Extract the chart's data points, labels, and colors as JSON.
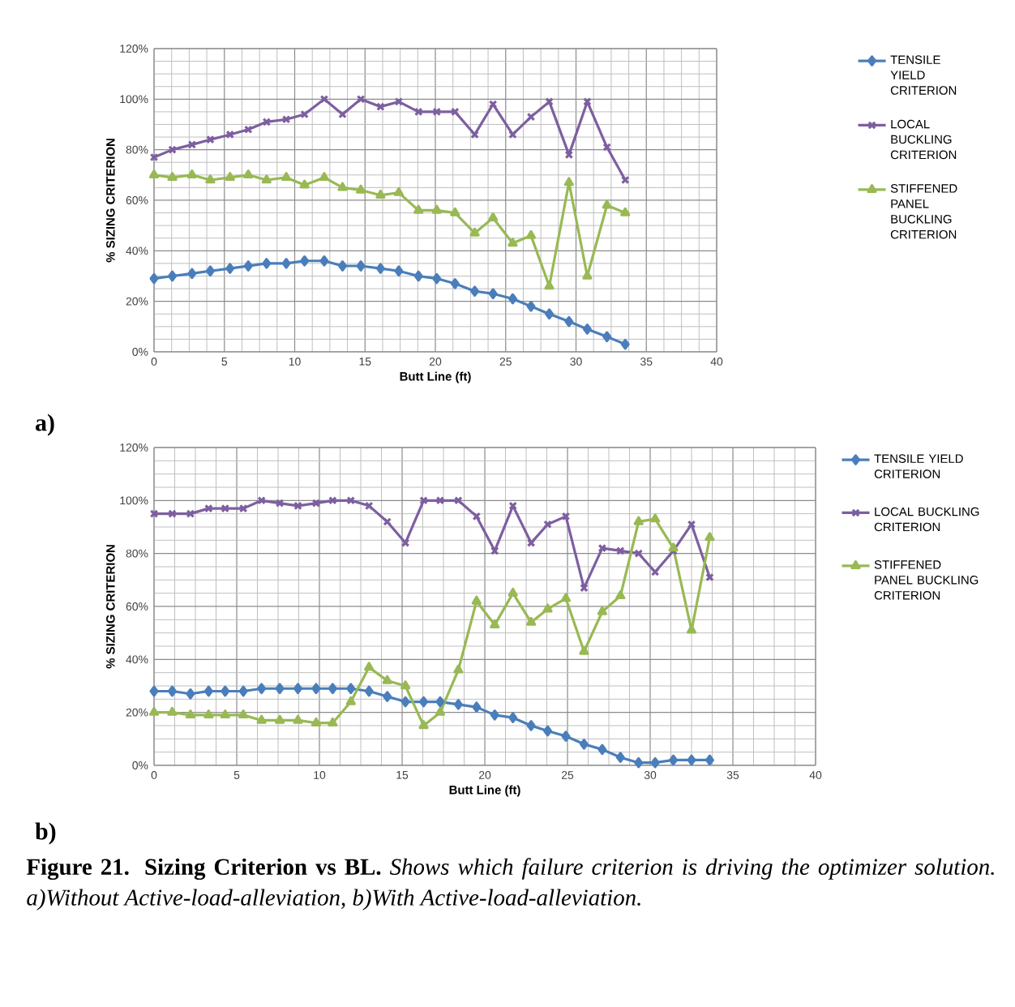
{
  "chart_data": [
    {
      "type": "line",
      "xlabel": "Butt Line (ft)",
      "ylabel": "% SIZING CRITERION",
      "xlim": [
        0,
        40
      ],
      "xticks": [
        0,
        5,
        10,
        15,
        20,
        25,
        30,
        35,
        40
      ],
      "ylim": [
        0,
        120
      ],
      "yticks": [
        {
          "value": 0,
          "label": "0%"
        },
        {
          "value": 20,
          "label": "20%"
        },
        {
          "value": 40,
          "label": "40%"
        },
        {
          "value": 60,
          "label": "60%"
        },
        {
          "value": 80,
          "label": "80%"
        },
        {
          "value": 100,
          "label": "100%"
        },
        {
          "value": 120,
          "label": "120%"
        }
      ],
      "grid": true,
      "legend": "right",
      "annotations": [
        "a)"
      ],
      "series": [
        {
          "name": "TENSILE YIELD CRITERION",
          "color": "#4a7ebb",
          "marker": "diamond",
          "x": [
            0,
            1.3,
            2.7,
            4.0,
            5.4,
            6.7,
            8.0,
            9.4,
            10.7,
            12.1,
            13.4,
            14.7,
            16.1,
            17.4,
            18.8,
            20.1,
            21.4,
            22.8,
            24.1,
            25.5,
            26.8,
            28.1,
            29.5,
            30.8,
            32.2,
            33.5
          ],
          "values": [
            29,
            30,
            31,
            32,
            33,
            34,
            35,
            35,
            36,
            36,
            34,
            34,
            33,
            32,
            30,
            29,
            27,
            24,
            23,
            21,
            18,
            15,
            12,
            9,
            6,
            3
          ]
        },
        {
          "name": "LOCAL BUCKLING CRITERION",
          "color": "#7d5fa0",
          "marker": "cross",
          "x": [
            0,
            1.3,
            2.7,
            4.0,
            5.4,
            6.7,
            8.0,
            9.4,
            10.7,
            12.1,
            13.4,
            14.7,
            16.1,
            17.4,
            18.8,
            20.1,
            21.4,
            22.8,
            24.1,
            25.5,
            26.8,
            28.1,
            29.5,
            30.8,
            32.2,
            33.5
          ],
          "values": [
            77,
            80,
            82,
            84,
            86,
            88,
            91,
            92,
            94,
            100,
            94,
            100,
            97,
            99,
            95,
            95,
            95,
            86,
            98,
            86,
            93,
            99,
            78,
            99,
            81,
            68
          ]
        },
        {
          "name": "STIFFENED PANEL BUCKLING CRITERION",
          "color": "#98b954",
          "marker": "triangle",
          "x": [
            0,
            1.3,
            2.7,
            4.0,
            5.4,
            6.7,
            8.0,
            9.4,
            10.7,
            12.1,
            13.4,
            14.7,
            16.1,
            17.4,
            18.8,
            20.1,
            21.4,
            22.8,
            24.1,
            25.5,
            26.8,
            28.1,
            29.5,
            30.8,
            32.2,
            33.5
          ],
          "values": [
            70,
            69,
            70,
            68,
            69,
            70,
            68,
            69,
            66,
            69,
            65,
            64,
            62,
            63,
            56,
            56,
            55,
            47,
            53,
            43,
            46,
            26,
            67,
            30,
            58,
            55
          ]
        }
      ]
    },
    {
      "type": "line",
      "xlabel": "Butt Line (ft)",
      "ylabel": "% SIZING CRITERION",
      "xlim": [
        0,
        40
      ],
      "xticks": [
        0,
        5,
        10,
        15,
        20,
        25,
        30,
        35,
        40
      ],
      "ylim": [
        0,
        120
      ],
      "yticks": [
        {
          "value": 0,
          "label": "0%"
        },
        {
          "value": 20,
          "label": "20%"
        },
        {
          "value": 40,
          "label": "40%"
        },
        {
          "value": 60,
          "label": "60%"
        },
        {
          "value": 80,
          "label": "80%"
        },
        {
          "value": 100,
          "label": "100%"
        },
        {
          "value": 120,
          "label": "120%"
        }
      ],
      "grid": true,
      "legend": "right",
      "annotations": [
        "b)",
        "**Figure 21. Sizing Criterion vs BL.** *Shows which failure criterion is driving the optimizer solution. a)Without Active-load-alleviation, b)With Active-load-alleviation.*"
      ],
      "series": [
        {
          "name": "TENSILE YIELD CRITERION",
          "color": "#4a7ebb",
          "marker": "diamond",
          "x": [
            0,
            1.1,
            2.2,
            3.3,
            4.3,
            5.4,
            6.5,
            7.6,
            8.7,
            9.8,
            10.8,
            11.9,
            13.0,
            14.1,
            15.2,
            16.3,
            17.3,
            18.4,
            19.5,
            20.6,
            21.7,
            22.8,
            23.8,
            24.9,
            26.0,
            27.1,
            28.2,
            29.3,
            30.3,
            31.4,
            32.5,
            33.6
          ],
          "values": [
            28,
            28,
            27,
            28,
            28,
            28,
            29,
            29,
            29,
            29,
            29,
            29,
            28,
            26,
            24,
            24,
            24,
            23,
            22,
            19,
            18,
            15,
            13,
            11,
            8,
            6,
            3,
            1,
            1,
            2,
            2,
            2
          ]
        },
        {
          "name": "LOCAL BUCKLING CRITERION",
          "color": "#7d5fa0",
          "marker": "cross",
          "x": [
            0,
            1.1,
            2.2,
            3.3,
            4.3,
            5.4,
            6.5,
            7.6,
            8.7,
            9.8,
            10.8,
            11.9,
            13.0,
            14.1,
            15.2,
            16.3,
            17.3,
            18.4,
            19.5,
            20.6,
            21.7,
            22.8,
            23.8,
            24.9,
            26.0,
            27.1,
            28.2,
            29.3,
            30.3,
            31.4,
            32.5,
            33.6
          ],
          "values": [
            95,
            95,
            95,
            97,
            97,
            97,
            100,
            99,
            98,
            99,
            100,
            100,
            98,
            92,
            84,
            100,
            100,
            100,
            94,
            81,
            98,
            84,
            91,
            94,
            67,
            82,
            81,
            80,
            73,
            81,
            91,
            71
          ]
        },
        {
          "name": "STIFFENED PANEL BUCKLING CRITERION",
          "color": "#98b954",
          "marker": "triangle",
          "x": [
            0,
            1.1,
            2.2,
            3.3,
            4.3,
            5.4,
            6.5,
            7.6,
            8.7,
            9.8,
            10.8,
            11.9,
            13.0,
            14.1,
            15.2,
            16.3,
            17.3,
            18.4,
            19.5,
            20.6,
            21.7,
            22.8,
            23.8,
            24.9,
            26.0,
            27.1,
            28.2,
            29.3,
            30.3,
            31.4,
            32.5,
            33.6
          ],
          "values": [
            20,
            20,
            19,
            19,
            19,
            19,
            17,
            17,
            17,
            16,
            16,
            24,
            37,
            32,
            30,
            15,
            20,
            36,
            62,
            53,
            65,
            54,
            59,
            63,
            43,
            58,
            64,
            92,
            93,
            82,
            51,
            86
          ]
        }
      ]
    }
  ]
}
